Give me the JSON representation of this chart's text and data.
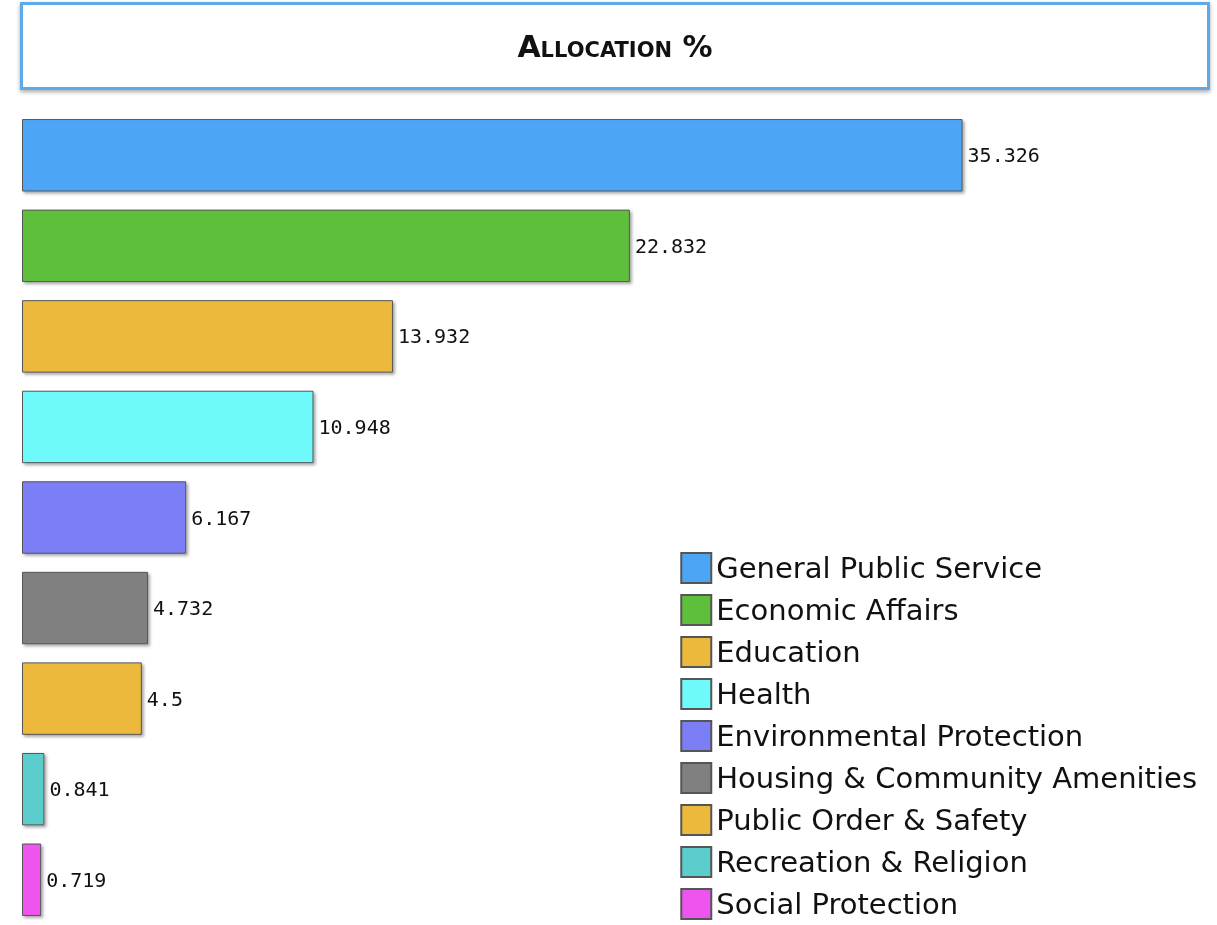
{
  "chart_data": {
    "type": "bar",
    "orientation": "horizontal",
    "title": "Allocation %",
    "categories": [
      null,
      null,
      null,
      null,
      null,
      null,
      null,
      null,
      null
    ],
    "series": [
      {
        "name": "General Public Service",
        "color": "#4da6f5",
        "values": [
          35.326,
          null,
          null,
          null,
          null,
          null,
          null,
          null,
          null
        ]
      },
      {
        "name": "Economic Affairs",
        "color": "#5dbf3a",
        "values": [
          null,
          22.832,
          null,
          null,
          null,
          null,
          null,
          null,
          null
        ]
      },
      {
        "name": "Education",
        "color": "#ecb93c",
        "values": [
          null,
          null,
          13.932,
          null,
          null,
          null,
          null,
          null,
          null
        ]
      },
      {
        "name": "Health",
        "color": "#6ef9fa",
        "values": [
          null,
          null,
          null,
          10.948,
          null,
          null,
          null,
          null,
          null
        ]
      },
      {
        "name": "Environmental Protection",
        "color": "#7b7ef5",
        "values": [
          null,
          null,
          null,
          null,
          6.167,
          null,
          null,
          null,
          null
        ]
      },
      {
        "name": "Housing & Community Amenities",
        "color": "#808080",
        "values": [
          null,
          null,
          null,
          null,
          null,
          4.732,
          null,
          null,
          null
        ]
      },
      {
        "name": "Public Order & Safety",
        "color": "#ecb93c",
        "values": [
          null,
          null,
          null,
          null,
          null,
          null,
          4.5,
          null,
          null
        ]
      },
      {
        "name": "Recreation & Religion",
        "color": "#5ccdcd",
        "values": [
          null,
          null,
          null,
          null,
          null,
          null,
          null,
          0.841,
          null
        ]
      },
      {
        "name": "Social Protection",
        "color": "#ee55ee",
        "values": [
          null,
          null,
          null,
          null,
          null,
          null,
          null,
          null,
          0.719
        ]
      }
    ],
    "stacked": true,
    "data_labels": true,
    "legend": "bottom right"
  }
}
